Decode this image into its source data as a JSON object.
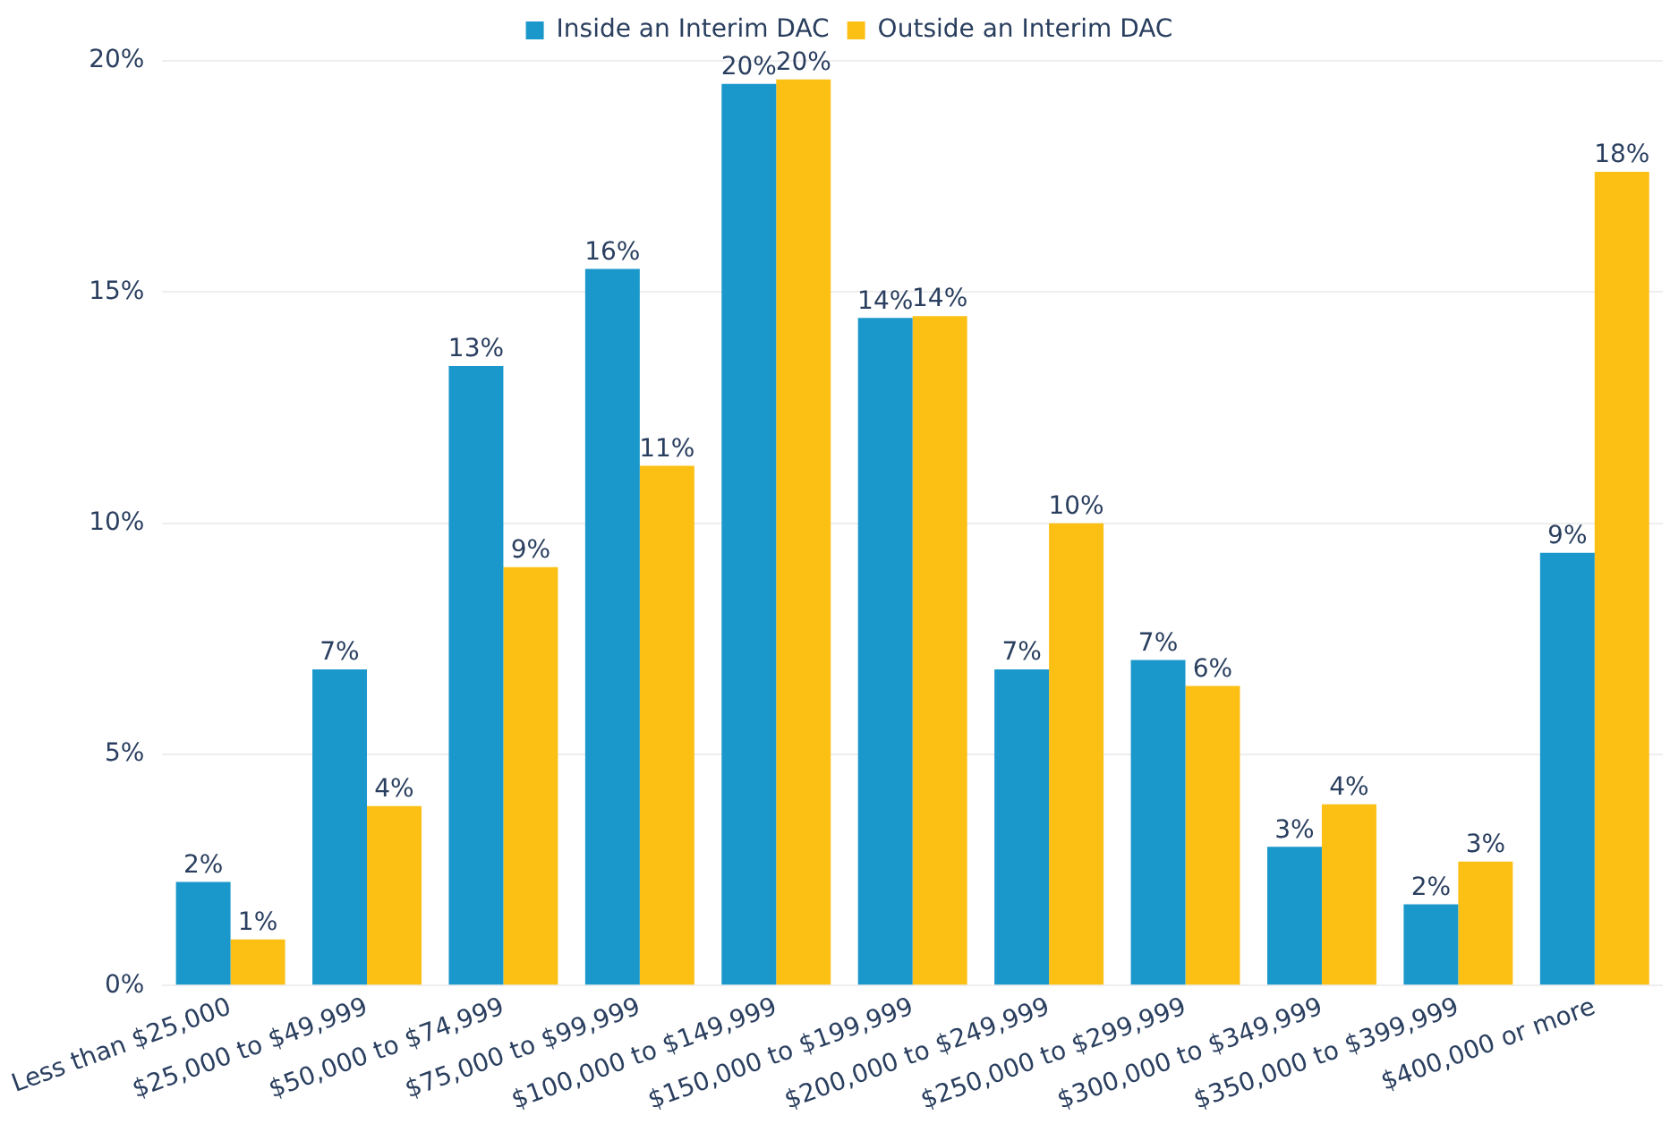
{
  "chart_data": {
    "type": "bar",
    "categories": [
      "Less than $25,000",
      "$25,000 to $49,999",
      "$50,000 to $74,999",
      "$75,000 to $99,999",
      "$100,000 to $149,999",
      "$150,000 to $199,999",
      "$200,000 to $249,999",
      "$250,000 to $299,999",
      "$300,000 to $349,999",
      "$350,000 to $399,999",
      "$400,000 or more"
    ],
    "series": [
      {
        "name": "Inside an Interim DAC",
        "color": "#1b98cb",
        "values": [
          2.24,
          6.84,
          13.4,
          15.5,
          19.5,
          14.44,
          6.84,
          7.04,
          3.0,
          1.76,
          9.36
        ],
        "value_labels": [
          "2%",
          "7%",
          "13%",
          "16%",
          "20%",
          "14%",
          "7%",
          "7%",
          "3%",
          "2%",
          "9%"
        ]
      },
      {
        "name": "Outside an Interim DAC",
        "color": "#fcbf14",
        "values": [
          1.0,
          3.88,
          9.05,
          11.24,
          19.6,
          14.48,
          10.0,
          6.48,
          3.92,
          2.68,
          17.6
        ],
        "value_labels": [
          "1%",
          "4%",
          "9%",
          "11%",
          "20%",
          "14%",
          "10%",
          "6%",
          "4%",
          "3%",
          "18%"
        ]
      }
    ],
    "ylim": [
      0,
      20
    ],
    "yticks": [
      {
        "value": 0,
        "label": "0%"
      },
      {
        "value": 5,
        "label": "5%"
      },
      {
        "value": 10,
        "label": "10%"
      },
      {
        "value": 15,
        "label": "15%"
      },
      {
        "value": 20,
        "label": "20%"
      }
    ],
    "grid": "y",
    "legend": "top"
  }
}
